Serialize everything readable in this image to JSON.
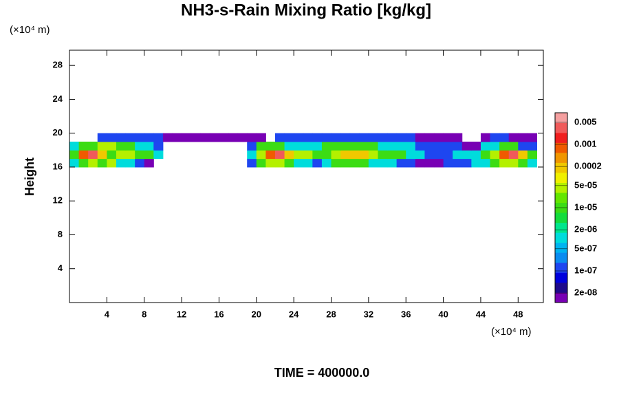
{
  "chart_data": {
    "type": "contour",
    "title": "NH3-s-Rain Mixing Ratio [kg/kg]",
    "y_label": "Height",
    "x_unit": "(×10⁴ m)",
    "y_unit": "(×10⁴ m)",
    "footer": "TIME = 400000.0",
    "xlim": [
      0,
      50.7
    ],
    "ylim": [
      0,
      29.8
    ],
    "xticks": [
      4,
      8,
      12,
      16,
      20,
      24,
      28,
      32,
      36,
      40,
      44,
      48
    ],
    "yticks": [
      4,
      8,
      12,
      16,
      20,
      24,
      28
    ],
    "colorbar": {
      "scale": "log",
      "clim": [
        1e-08,
        0.01
      ],
      "colors": [
        "#7800b4",
        "#1e0a8c",
        "#0000dc",
        "#1e46f0",
        "#0a8cf0",
        "#00b4f0",
        "#00dcdc",
        "#00e68c",
        "#14dc3c",
        "#3cdc14",
        "#64e600",
        "#b4f000",
        "#f0f000",
        "#f0c800",
        "#f09600",
        "#f05a00",
        "#f01e1e",
        "#f05a5a",
        "#f5a0a0"
      ],
      "ticks": [
        {
          "value": 2e-08,
          "label": "2e-08"
        },
        {
          "value": 1e-07,
          "label": "1e-07"
        },
        {
          "value": 5e-07,
          "label": "5e-07"
        },
        {
          "value": 2e-06,
          "label": "2e-06"
        },
        {
          "value": 1e-05,
          "label": "1e-05"
        },
        {
          "value": 5e-05,
          "label": "5e-05"
        },
        {
          "value": 0.0002,
          "label": "0.0002"
        },
        {
          "value": 0.001,
          "label": "0.001"
        },
        {
          "value": 0.005,
          "label": "0.005"
        }
      ]
    },
    "x": [
      0.5,
      1.5,
      2.5,
      3.5,
      4.5,
      5.5,
      6.5,
      7.5,
      8.5,
      9.5,
      10.5,
      11.5,
      12.5,
      13.5,
      14.5,
      15.5,
      16.5,
      17.5,
      18.5,
      19.5,
      20.5,
      21.5,
      22.5,
      23.5,
      24.5,
      25.5,
      26.5,
      27.5,
      28.5,
      29.5,
      30.5,
      31.5,
      32.5,
      33.5,
      34.5,
      35.5,
      36.5,
      37.5,
      38.5,
      39.5,
      40.5,
      41.5,
      42.5,
      43.5,
      44.5,
      45.5,
      46.5,
      47.5,
      48.5,
      49.5
    ],
    "y": [
      16.5,
      17.5,
      18.5,
      19.5
    ],
    "z": [
      [
        1e-06,
        1e-05,
        5e-05,
        1e-05,
        5e-05,
        1e-06,
        1e-06,
        1e-07,
        2e-08,
        null,
        null,
        null,
        null,
        null,
        null,
        null,
        null,
        null,
        null,
        1e-07,
        1e-05,
        5e-05,
        5e-05,
        1e-05,
        1e-06,
        1e-06,
        1e-07,
        1e-06,
        1e-05,
        1e-05,
        1e-05,
        1e-05,
        1e-06,
        1e-06,
        1e-06,
        1e-07,
        1e-07,
        2e-08,
        2e-08,
        2e-08,
        1e-07,
        1e-07,
        1e-07,
        1e-06,
        1e-06,
        1e-05,
        5e-05,
        5e-05,
        1e-05,
        1e-06
      ],
      [
        1e-05,
        0.001,
        0.003,
        0.0002,
        1e-05,
        5e-05,
        5e-05,
        1e-05,
        1e-05,
        1e-06,
        null,
        null,
        null,
        null,
        null,
        null,
        null,
        null,
        null,
        1e-06,
        5e-05,
        0.001,
        0.003,
        0.0002,
        5e-05,
        5e-05,
        1e-05,
        1e-05,
        5e-05,
        0.0002,
        0.0002,
        0.0002,
        5e-05,
        1e-05,
        1e-05,
        1e-05,
        1e-06,
        1e-06,
        1e-07,
        1e-07,
        1e-07,
        1e-06,
        1e-06,
        1e-06,
        1e-05,
        5e-05,
        0.001,
        0.003,
        0.0002,
        1e-05
      ],
      [
        1e-06,
        1e-05,
        1e-05,
        5e-05,
        5e-05,
        1e-05,
        1e-05,
        1e-06,
        1e-06,
        1e-07,
        null,
        null,
        null,
        null,
        null,
        null,
        null,
        null,
        null,
        1e-07,
        1e-05,
        1e-05,
        1e-05,
        1e-06,
        1e-06,
        1e-06,
        1e-06,
        1e-05,
        1e-05,
        1e-05,
        1e-05,
        1e-05,
        1e-05,
        1e-06,
        1e-06,
        1e-06,
        1e-06,
        1e-07,
        1e-07,
        1e-07,
        1e-07,
        1e-07,
        2e-08,
        2e-08,
        1e-06,
        1e-06,
        1e-05,
        1e-05,
        1e-07,
        1e-07
      ],
      [
        null,
        null,
        null,
        1e-07,
        1e-07,
        1e-07,
        1e-07,
        1e-07,
        1e-07,
        1e-07,
        2e-08,
        2e-08,
        2e-08,
        2e-08,
        2e-08,
        2e-08,
        2e-08,
        2e-08,
        2e-08,
        2e-08,
        2e-08,
        null,
        1e-07,
        1e-07,
        1e-07,
        1e-07,
        1e-07,
        1e-07,
        1e-07,
        1e-07,
        1e-07,
        1e-07,
        1e-07,
        1e-07,
        1e-07,
        1e-07,
        1e-07,
        2e-08,
        2e-08,
        2e-08,
        2e-08,
        2e-08,
        null,
        null,
        2e-08,
        1e-07,
        1e-07,
        2e-08,
        2e-08,
        2e-08
      ]
    ]
  }
}
